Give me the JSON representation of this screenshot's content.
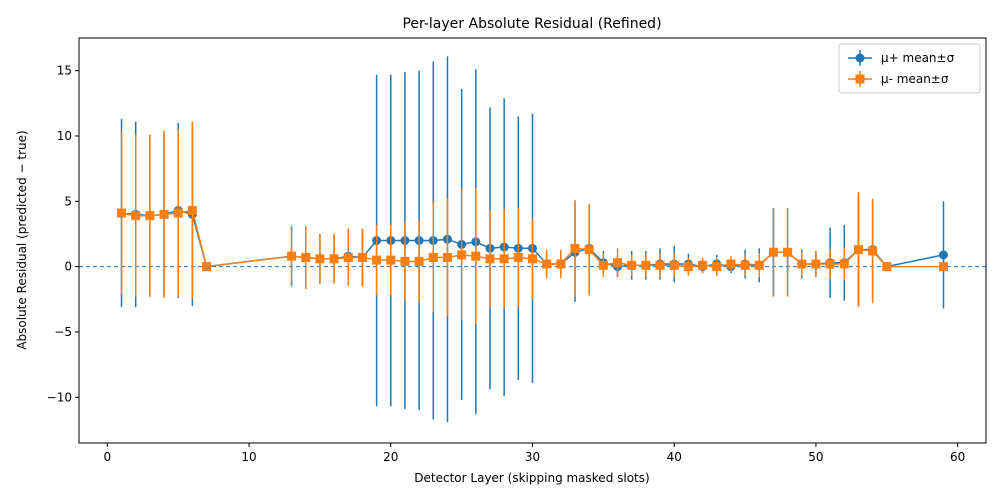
{
  "chart_data": {
    "type": "line",
    "title": "Per-layer Absolute Residual (Refined)",
    "xlabel": "Detector Layer (skipping masked slots)",
    "ylabel": "Absolute Residual (predicted − true)",
    "xlim": [
      -2,
      62
    ],
    "ylim": [
      -13.5,
      17.5
    ],
    "xticks": [
      0,
      10,
      20,
      30,
      40,
      50,
      60
    ],
    "yticks": [
      -10,
      -5,
      0,
      5,
      10,
      15
    ],
    "ytick_labels": [
      "−10",
      "−5",
      "0",
      "5",
      "10",
      "15"
    ],
    "grid": false,
    "legend_position": "top-right",
    "reference_line": {
      "y": 0,
      "style": "dashed",
      "color": "#1f77b4"
    },
    "colors": {
      "mu_plus": "#1f77b4",
      "mu_minus": "#ff7f0e"
    },
    "series": [
      {
        "name": "μ+ mean±σ",
        "marker": "circle",
        "color": "#1f77b4",
        "x": [
          1,
          2,
          3,
          4,
          5,
          6,
          7,
          13,
          14,
          15,
          16,
          17,
          18,
          19,
          20,
          21,
          22,
          23,
          24,
          25,
          26,
          27,
          28,
          29,
          30,
          31,
          32,
          33,
          34,
          35,
          36,
          37,
          38,
          39,
          40,
          41,
          42,
          43,
          44,
          45,
          46,
          47,
          48,
          49,
          50,
          51,
          52,
          53,
          54,
          55,
          59
        ],
        "y": [
          4.1,
          4.0,
          3.9,
          4.0,
          4.3,
          4.0,
          0.0,
          0.8,
          0.7,
          0.6,
          0.6,
          0.8,
          0.7,
          2.0,
          2.0,
          2.0,
          2.0,
          2.0,
          2.1,
          1.7,
          1.9,
          1.4,
          1.5,
          1.4,
          1.4,
          0.2,
          0.2,
          1.1,
          1.4,
          0.3,
          0.0,
          0.1,
          0.1,
          0.2,
          0.2,
          0.2,
          0.0,
          0.2,
          0.0,
          0.2,
          0.1,
          1.1,
          1.1,
          0.2,
          0.2,
          0.3,
          0.3,
          1.3,
          1.3,
          0.0,
          0.9
        ],
        "err": [
          7.2,
          7.1,
          6.2,
          6.2,
          6.7,
          7.0,
          0.1,
          2.3,
          2.4,
          1.9,
          1.8,
          2.1,
          2.2,
          12.7,
          12.7,
          12.9,
          13.0,
          13.7,
          14.0,
          11.9,
          13.2,
          10.8,
          11.4,
          10.1,
          10.3,
          0.9,
          0.9,
          3.8,
          3.4,
          0.9,
          0.8,
          1.1,
          1.1,
          1.2,
          1.4,
          0.8,
          0.5,
          0.7,
          0.5,
          1.1,
          1.3,
          3.3,
          3.3,
          1.1,
          1.0,
          2.7,
          2.9,
          4.3,
          3.8,
          0.1,
          4.1
        ]
      },
      {
        "name": "μ- mean±σ",
        "marker": "square",
        "color": "#ff7f0e",
        "x": [
          1,
          2,
          3,
          4,
          5,
          6,
          7,
          13,
          14,
          15,
          16,
          17,
          18,
          19,
          20,
          21,
          22,
          23,
          24,
          25,
          26,
          27,
          28,
          29,
          30,
          31,
          32,
          33,
          34,
          35,
          36,
          37,
          38,
          39,
          40,
          41,
          42,
          43,
          44,
          45,
          46,
          47,
          48,
          49,
          50,
          51,
          52,
          53,
          54,
          55,
          59
        ],
        "y": [
          4.1,
          3.9,
          3.9,
          4.0,
          4.1,
          4.3,
          0.0,
          0.8,
          0.7,
          0.6,
          0.6,
          0.7,
          0.7,
          0.5,
          0.5,
          0.4,
          0.4,
          0.7,
          0.7,
          0.9,
          0.8,
          0.6,
          0.6,
          0.7,
          0.6,
          0.2,
          0.2,
          1.4,
          1.3,
          0.1,
          0.3,
          0.1,
          0.1,
          0.1,
          0.1,
          0.0,
          0.1,
          0.0,
          0.2,
          0.1,
          0.1,
          1.1,
          1.1,
          0.2,
          0.2,
          0.2,
          0.2,
          1.3,
          1.2,
          0.0,
          0.0
        ],
        "err": [
          6.2,
          6.2,
          6.2,
          6.4,
          6.4,
          6.8,
          0.1,
          2.3,
          2.4,
          1.9,
          1.9,
          2.2,
          2.2,
          2.7,
          2.7,
          3.0,
          3.1,
          4.2,
          4.5,
          5.0,
          5.2,
          3.7,
          3.8,
          3.8,
          3.1,
          1.1,
          1.1,
          3.7,
          3.5,
          0.9,
          1.1,
          0.8,
          0.9,
          0.9,
          0.9,
          0.7,
          0.6,
          0.7,
          0.6,
          0.8,
          0.9,
          3.4,
          3.4,
          0.9,
          1.0,
          1.1,
          1.2,
          4.4,
          4.0,
          0.1,
          0.1
        ]
      }
    ]
  }
}
